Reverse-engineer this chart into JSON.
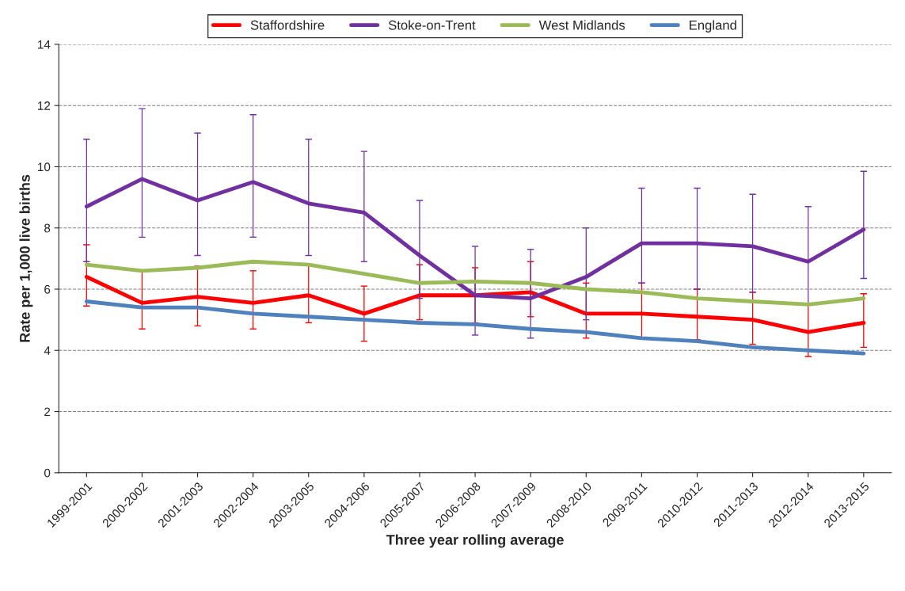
{
  "chart_data": {
    "type": "line",
    "xlabel": "Three year rolling average",
    "ylabel": "Rate per 1,000 live births",
    "categories": [
      "1999-2001",
      "2000-2002",
      "2001-2003",
      "2002-2004",
      "2003-2005",
      "2004-2006",
      "2005-2007",
      "2006-2008",
      "2007-2009",
      "2008-2010",
      "2009-2011",
      "2010-2012",
      "2011-2013",
      "2012-2014",
      "2013-2015"
    ],
    "series": [
      {
        "name": "Staffordshire",
        "color": "#ff0000",
        "values": [
          6.4,
          5.55,
          5.75,
          5.55,
          5.8,
          5.2,
          5.8,
          5.8,
          5.9,
          5.2,
          5.2,
          5.1,
          5.0,
          4.6,
          4.9
        ],
        "errors": [
          [
            5.45,
            7.45
          ],
          [
            4.7,
            6.6
          ],
          [
            4.8,
            6.75
          ],
          [
            4.7,
            6.6
          ],
          [
            4.9,
            6.8
          ],
          [
            4.3,
            6.1
          ],
          [
            5.0,
            6.8
          ],
          [
            4.9,
            6.7
          ],
          [
            5.1,
            6.9
          ],
          [
            4.4,
            6.2
          ],
          [
            4.4,
            6.2
          ],
          [
            4.35,
            6.0
          ],
          [
            4.2,
            5.9
          ],
          [
            3.8,
            5.5
          ],
          [
            4.1,
            5.85
          ]
        ]
      },
      {
        "name": "Stoke-on-Trent",
        "color": "#7030a0",
        "values": [
          8.7,
          9.6,
          8.9,
          9.5,
          8.8,
          8.5,
          7.1,
          5.8,
          5.7,
          6.4,
          7.5,
          7.5,
          7.4,
          6.9,
          7.95
        ],
        "errors": [
          [
            6.9,
            10.9
          ],
          [
            7.7,
            11.9
          ],
          [
            7.1,
            11.1
          ],
          [
            7.7,
            11.7
          ],
          [
            7.1,
            10.9
          ],
          [
            6.9,
            10.5
          ],
          [
            5.7,
            8.9
          ],
          [
            4.5,
            7.4
          ],
          [
            4.4,
            7.3
          ],
          [
            5.0,
            8.0
          ],
          [
            6.2,
            9.3
          ],
          [
            6.0,
            9.3
          ],
          [
            5.9,
            9.1
          ],
          [
            5.5,
            8.7
          ],
          [
            6.35,
            9.85
          ]
        ]
      },
      {
        "name": "West Midlands",
        "color": "#9bbb59",
        "values": [
          6.8,
          6.6,
          6.7,
          6.9,
          6.8,
          6.5,
          6.2,
          6.25,
          6.2,
          6.0,
          5.9,
          5.7,
          5.6,
          5.5,
          5.7
        ]
      },
      {
        "name": "England",
        "color": "#4f81bd",
        "values": [
          5.6,
          5.4,
          5.4,
          5.2,
          5.1,
          5.0,
          4.9,
          4.85,
          4.7,
          4.6,
          4.4,
          4.3,
          4.1,
          4.0,
          3.9
        ]
      }
    ],
    "ylim": [
      0,
      14
    ],
    "yticks": [
      0,
      2,
      4,
      6,
      8,
      10,
      12,
      14
    ],
    "grid": "y",
    "legend": "top"
  }
}
